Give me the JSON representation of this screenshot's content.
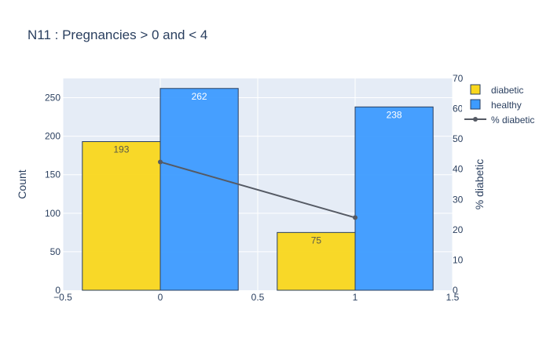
{
  "chart_data": {
    "type": "bar",
    "title": "N11 : Pregnancies > 0 and < 4",
    "xlabel": "",
    "ylabel": "Count",
    "y2label": "% diabetic",
    "x": [
      0,
      1
    ],
    "xlim": [
      -0.5,
      1.5
    ],
    "ylim": [
      0,
      275
    ],
    "y2lim": [
      0,
      70
    ],
    "x_ticks": [
      "−0.5",
      "0",
      "0.5",
      "1",
      "1.5"
    ],
    "y_ticks": [
      "0",
      "50",
      "100",
      "150",
      "200",
      "250"
    ],
    "y2_ticks": [
      "0",
      "10",
      "20",
      "30",
      "40",
      "50",
      "60",
      "70"
    ],
    "grid": true,
    "legend_position": "top-right",
    "series": [
      {
        "name": "diabetic",
        "kind": "bar",
        "values": [
          193,
          75
        ],
        "labels": [
          "193",
          "75"
        ],
        "color": "#f9d71c"
      },
      {
        "name": "healthy",
        "kind": "bar",
        "values": [
          262,
          238
        ],
        "labels": [
          "262",
          "238"
        ],
        "color": "#3d9bff"
      },
      {
        "name": "% diabetic",
        "kind": "line",
        "axis": "y2",
        "values": [
          42.4,
          24.0
        ],
        "color": "#555a64"
      }
    ]
  },
  "colors": {
    "plot_bg": "#e5ecf6",
    "grid": "#ffffff",
    "text": "#2a3f5f",
    "bar_outline": "#2a3f5f"
  }
}
